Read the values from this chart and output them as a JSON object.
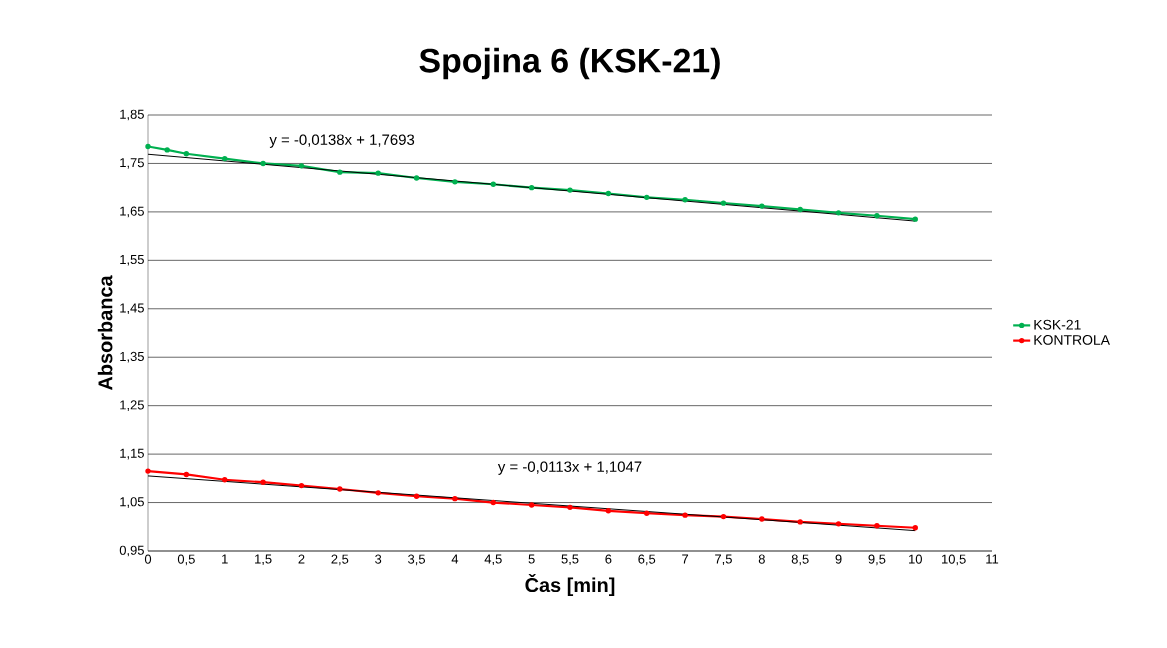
{
  "chart_data": {
    "type": "line",
    "title": "Spojina 6 (KSK-21)",
    "xlabel": "Čas [min]",
    "ylabel": "Absorbanca",
    "xlim": [
      0,
      11
    ],
    "ylim": [
      0.95,
      1.85
    ],
    "xticks": [
      0,
      {
        "value": 0.5,
        "label": "0,5"
      },
      1,
      {
        "value": 1.5,
        "label": "1,5"
      },
      2,
      {
        "value": 2.5,
        "label": "2,5"
      },
      3,
      {
        "value": 3.5,
        "label": "3,5"
      },
      4,
      {
        "value": 4.5,
        "label": "4,5"
      },
      5,
      {
        "value": 5.5,
        "label": "5,5"
      },
      6,
      {
        "value": 6.5,
        "label": "6,5"
      },
      7,
      {
        "value": 7.5,
        "label": "7,5"
      },
      8,
      {
        "value": 8.5,
        "label": "8,5"
      },
      9,
      {
        "value": 9.5,
        "label": "9,5"
      },
      10,
      {
        "value": 10.5,
        "label": "10,5"
      },
      11
    ],
    "yticks": [
      {
        "value": 0.95,
        "label": "0,95"
      },
      {
        "value": 1.05,
        "label": "1,05"
      },
      {
        "value": 1.15,
        "label": "1,15"
      },
      {
        "value": 1.25,
        "label": "1,25"
      },
      {
        "value": 1.35,
        "label": "1,35"
      },
      {
        "value": 1.45,
        "label": "1,45"
      },
      {
        "value": 1.55,
        "label": "1,55"
      },
      {
        "value": 1.65,
        "label": "1,65"
      },
      {
        "value": 1.75,
        "label": "1,75"
      },
      {
        "value": 1.85,
        "label": "1,85"
      }
    ],
    "grid": "y",
    "legend": "right",
    "marker": "circle",
    "line_style": "solid",
    "series": [
      {
        "name": "KSK-21",
        "color": "#00b050",
        "x": [
          0,
          0.25,
          0.5,
          1,
          1.5,
          2,
          2.5,
          3,
          3.5,
          4,
          4.5,
          5,
          5.5,
          6,
          6.5,
          7,
          7.5,
          8,
          8.5,
          9,
          9.5,
          10
        ],
        "values": [
          1.785,
          1.778,
          1.77,
          1.76,
          1.75,
          1.745,
          1.732,
          1.73,
          1.72,
          1.712,
          1.707,
          1.7,
          1.695,
          1.688,
          1.68,
          1.675,
          1.668,
          1.662,
          1.655,
          1.648,
          1.642,
          1.635
        ]
      },
      {
        "name": "KONTROLA",
        "color": "#ff0000",
        "x": [
          0,
          0.5,
          1,
          1.5,
          2,
          2.5,
          3,
          3.5,
          4,
          4.5,
          5,
          5.5,
          6,
          6.5,
          7,
          7.5,
          8,
          8.5,
          9,
          9.5,
          10
        ],
        "values": [
          1.115,
          1.108,
          1.097,
          1.092,
          1.085,
          1.078,
          1.07,
          1.063,
          1.058,
          1.05,
          1.045,
          1.04,
          1.033,
          1.028,
          1.024,
          1.021,
          1.016,
          1.01,
          1.006,
          1.002,
          0.998
        ]
      },
      {
        "color": "#000000",
        "marker": "none",
        "x": [
          0,
          10
        ],
        "values": [
          1.769,
          1.631
        ]
      },
      {
        "color": "#000000",
        "marker": "none",
        "x": [
          0,
          10
        ],
        "values": [
          1.105,
          0.992
        ]
      }
    ],
    "annotations": [
      "y = -0,0138x + 1,7693",
      "y = -0,0113x + 1,1047"
    ]
  }
}
